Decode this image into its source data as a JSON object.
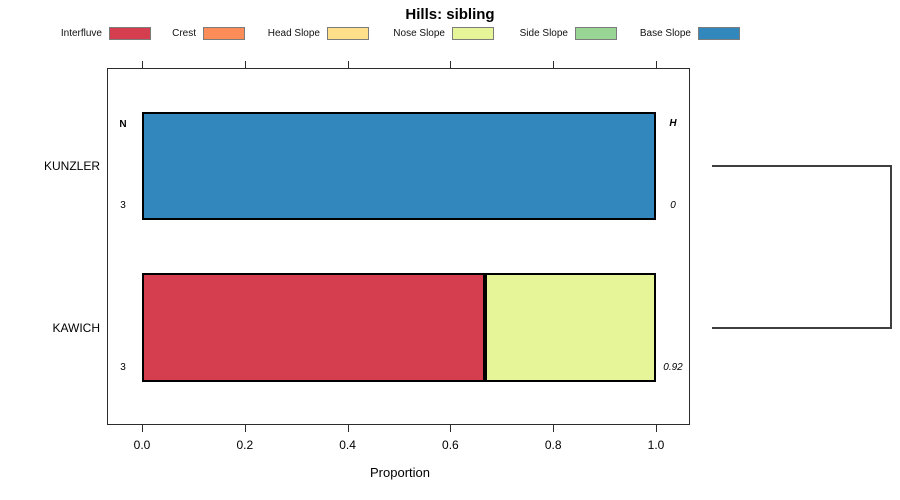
{
  "title": "Hills: sibling",
  "legend": {
    "items": [
      {
        "label": "Interfluve",
        "color": "#D53E4F"
      },
      {
        "label": "Crest",
        "color": "#FC8D59"
      },
      {
        "label": "Head Slope",
        "color": "#FEE08B"
      },
      {
        "label": "Nose Slope",
        "color": "#E6F598"
      },
      {
        "label": "Side Slope",
        "color": "#99D594"
      },
      {
        "label": "Base Slope",
        "color": "#3288BD"
      }
    ]
  },
  "chart_data": {
    "type": "bar",
    "orientation": "horizontal",
    "stacked": true,
    "title": "Hills: sibling",
    "xlabel": "Proportion",
    "xlim": [
      0,
      1
    ],
    "x_ticks": [
      "0.0",
      "0.2",
      "0.4",
      "0.6",
      "0.8",
      "1.0"
    ],
    "grid": false,
    "legend_position": "top",
    "categories": [
      "KUNZLER",
      "KAWICH"
    ],
    "series": [
      {
        "name": "Interfluve",
        "color": "#D53E4F",
        "values": [
          0,
          0.667
        ]
      },
      {
        "name": "Crest",
        "color": "#FC8D59",
        "values": [
          0,
          0
        ]
      },
      {
        "name": "Head Slope",
        "color": "#FEE08B",
        "values": [
          0,
          0
        ]
      },
      {
        "name": "Nose Slope",
        "color": "#E6F598",
        "values": [
          0,
          0.333
        ]
      },
      {
        "name": "Side Slope",
        "color": "#99D594",
        "values": [
          0,
          0
        ]
      },
      {
        "name": "Base Slope",
        "color": "#3288BD",
        "values": [
          1,
          0
        ]
      }
    ],
    "annotations": {
      "n_header": "N",
      "h_header": "H",
      "rows": [
        {
          "category": "KUNZLER",
          "n": "3",
          "h": "0"
        },
        {
          "category": "KAWICH",
          "n": "3",
          "h": "0.92"
        }
      ]
    },
    "dendrogram": {
      "type": "cluster-join-bracket",
      "leaves": [
        "KUNZLER",
        "KAWICH"
      ],
      "position": "right"
    }
  }
}
